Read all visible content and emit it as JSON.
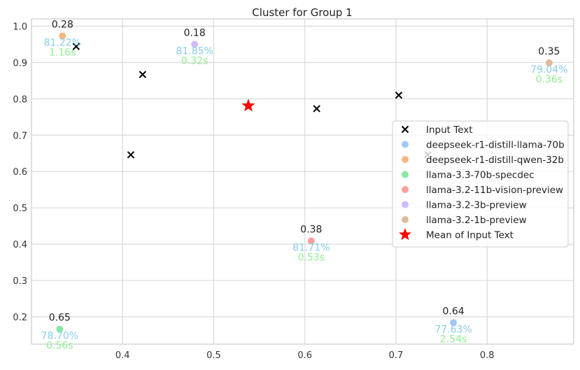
{
  "chart_data": {
    "type": "scatter",
    "title": "Cluster for Group 1",
    "xlabel": "",
    "ylabel": "",
    "xlim": [
      0.3,
      0.895
    ],
    "ylim": [
      0.125,
      1.02
    ],
    "xticks": [
      0.4,
      0.5,
      0.6,
      0.7,
      0.8
    ],
    "yticks": [
      0.2,
      0.3,
      0.4,
      0.5,
      0.6,
      0.7,
      0.8,
      0.9,
      1.0
    ],
    "grid": true,
    "legend_position": "center-right",
    "input_text": {
      "name": "Input Text",
      "marker": "x",
      "color": "#000000",
      "points": [
        {
          "x": 0.349,
          "y": 0.944
        },
        {
          "x": 0.422,
          "y": 0.867
        },
        {
          "x": 0.409,
          "y": 0.646
        },
        {
          "x": 0.613,
          "y": 0.773
        },
        {
          "x": 0.703,
          "y": 0.81
        },
        {
          "x": 0.735,
          "y": 0.646
        }
      ]
    },
    "models": [
      {
        "name": "deepseek-r1-distill-llama-70b",
        "color": "#a1c9f4",
        "x": 0.763,
        "y": 0.184,
        "score": "0.64",
        "accuracy": "77.63%",
        "time": "2.54s"
      },
      {
        "name": "deepseek-r1-distill-qwen-32b",
        "color": "#ffb482",
        "x": 0.334,
        "y": 0.973,
        "score": "0.28",
        "accuracy": "81.22%",
        "time": "1.16s"
      },
      {
        "name": "llama-3.3-70b-specdec",
        "color": "#8de5a1",
        "x": 0.331,
        "y": 0.166,
        "score": "0.65",
        "accuracy": "78.70%",
        "time": "0.56s"
      },
      {
        "name": "llama-3.2-11b-vision-preview",
        "color": "#ff9f9b",
        "x": 0.607,
        "y": 0.409,
        "score": "0.38",
        "accuracy": "81.71%",
        "time": "0.53s"
      },
      {
        "name": "llama-3.2-3b-preview",
        "color": "#d0bbff",
        "x": 0.479,
        "y": 0.95,
        "score": "0.18",
        "accuracy": "81.85%",
        "time": "0.32s"
      },
      {
        "name": "llama-3.2-1b-preview",
        "color": "#debb9b",
        "x": 0.868,
        "y": 0.899,
        "score": "0.35",
        "accuracy": "79.04%",
        "time": "0.36s"
      }
    ],
    "mean": {
      "name": "Mean of Input Text",
      "marker": "star",
      "color": "#ff0000",
      "x": 0.538,
      "y": 0.781
    },
    "annotation_colors": {
      "score": "#222222",
      "accuracy": "#87ceeb",
      "time": "#90ee90"
    }
  }
}
